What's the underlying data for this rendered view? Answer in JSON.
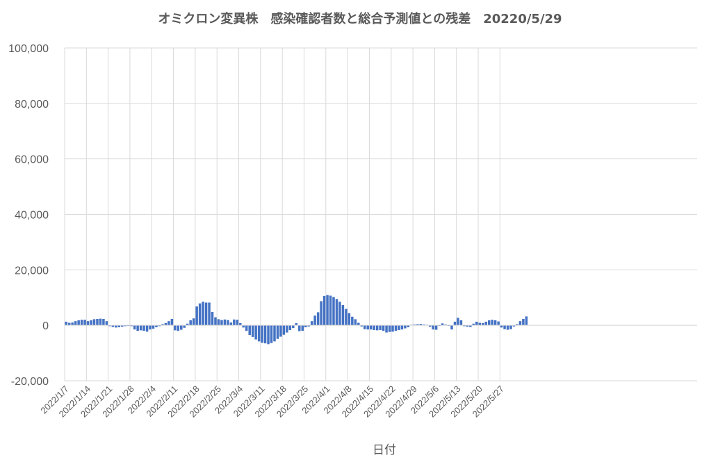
{
  "chart_data": {
    "type": "bar",
    "title": "オミクロン変異株　感染確認者数と総合予測値との残差　20220/5/29",
    "xlabel": "日付",
    "ylabel": "",
    "ylim": [
      -20000,
      100000
    ],
    "yticks": [
      -20000,
      0,
      20000,
      40000,
      60000,
      80000,
      100000
    ],
    "ytick_labels": [
      "-20,000",
      "0",
      "20,000",
      "40,000",
      "60,000",
      "80,000",
      "100,000"
    ],
    "xtick_labels": [
      "2022/1/7",
      "2022/1/14",
      "2022/1/21",
      "2022/1/28",
      "2022/2/4",
      "2022/2/11",
      "2022/2/18",
      "2022/2/25",
      "2022/3/4",
      "2022/3/11",
      "2022/3/18",
      "2022/3/25",
      "2022/4/1",
      "2022/4/8",
      "2022/4/15",
      "2022/4/22",
      "2022/4/29",
      "2022/5/6",
      "2022/5/13",
      "2022/5/20",
      "2022/5/27"
    ],
    "grid": true,
    "legend": "none",
    "bar_color": "#4472C4",
    "start_date": "2022/1/7",
    "values": [
      1300,
      900,
      1000,
      1500,
      1800,
      2000,
      2000,
      1500,
      1800,
      2200,
      2300,
      2400,
      2300,
      1500,
      -300,
      -600,
      -800,
      -700,
      -500,
      -300,
      -200,
      -300,
      -1500,
      -2000,
      -1800,
      -2000,
      -2300,
      -1500,
      -1200,
      -700,
      -300,
      400,
      800,
      1500,
      2300,
      -1800,
      -2000,
      -1600,
      -900,
      600,
      1800,
      2500,
      6800,
      7900,
      8500,
      8200,
      8200,
      4800,
      2900,
      2200,
      1900,
      2100,
      1900,
      1000,
      2100,
      2000,
      800,
      -800,
      -2000,
      -3500,
      -4200,
      -5100,
      -5800,
      -6300,
      -6500,
      -6800,
      -6400,
      -5800,
      -4900,
      -4100,
      -3400,
      -2600,
      -1700,
      -1000,
      800,
      -2100,
      -2000,
      -700,
      -400,
      1500,
      3500,
      4700,
      8700,
      10600,
      10900,
      10700,
      10200,
      9500,
      8500,
      7300,
      5900,
      4400,
      3100,
      2200,
      900,
      -400,
      -1400,
      -1500,
      -1500,
      -1700,
      -1800,
      -1700,
      -2000,
      -2600,
      -2400,
      -2300,
      -2000,
      -1700,
      -1500,
      -1100,
      -700,
      200,
      300,
      400,
      500,
      300,
      200,
      -500,
      -1500,
      -1600,
      -200,
      700,
      300,
      -200,
      -1500,
      1300,
      2700,
      1800,
      -300,
      -500,
      -600,
      600,
      1300,
      900,
      800,
      1300,
      1800,
      2000,
      1800,
      1400,
      -800,
      -1400,
      -1600,
      -1400,
      -400,
      400,
      1500,
      2300,
      3200
    ]
  }
}
